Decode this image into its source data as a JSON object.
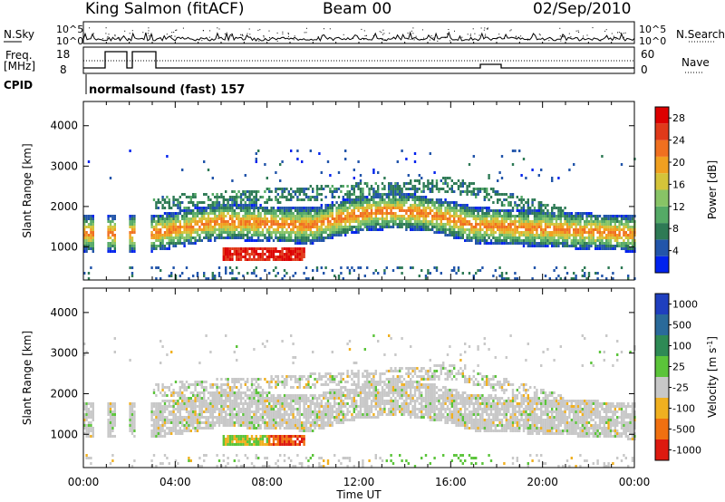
{
  "header": {
    "title": "King Salmon (fitACF)",
    "beam": "Beam 00",
    "date": "02/Sep/2010"
  },
  "info_panel": {
    "nsky_label": "N.Sky",
    "nsky_ticks": [
      "10^5",
      "10^0"
    ],
    "nsearch_label": "N.Search",
    "nsearch_ticks": [
      "10^5",
      "10^0"
    ],
    "freq_label": "Freq.",
    "freq_unit": "[MHz]",
    "freq_ticks": [
      "18",
      "8"
    ],
    "nave_label": "Nave",
    "nave_ticks": [
      "60",
      "0"
    ],
    "cpid_label": "CPID",
    "cpid_value": "normalsound (fast) 157"
  },
  "chart_data": [
    {
      "type": "heatmap",
      "panel": "power",
      "ylabel": "Slant Range [km]",
      "yticks": [
        "1000",
        "2000",
        "3000",
        "4000"
      ],
      "ylim": [
        180,
        4600
      ],
      "xlabel": "Time UT",
      "xticks": [
        "00:00",
        "04:00",
        "08:00",
        "12:00",
        "16:00",
        "20:00",
        "00:00"
      ],
      "xlim_hours": [
        0,
        24
      ],
      "colorbar": {
        "label": "Power [dB]",
        "ticks": [
          "4",
          "8",
          "12",
          "16",
          "20",
          "24",
          "28"
        ],
        "range": [
          0,
          30
        ],
        "colors": [
          "#0022ee",
          "#2255aa",
          "#2e7a55",
          "#55aa66",
          "#88c466",
          "#d4c43a",
          "#f0a020",
          "#f07020",
          "#e03a1a",
          "#dd0000"
        ]
      },
      "features": [
        {
          "name": "main band",
          "t_start": 0.0,
          "t_end": 24.0,
          "range_km_start": 1250,
          "range_km_end": 1350,
          "peak_power_db": 22
        },
        {
          "name": "lower echo",
          "t_start": 6.0,
          "t_end": 9.5,
          "range_km": 800,
          "peak_power_db": 28
        },
        {
          "name": "upper band",
          "t_start": 3.0,
          "t_end": 17.0,
          "range_km_start": 2300,
          "range_km_end": 2600,
          "peak_power_db": 10
        }
      ]
    },
    {
      "type": "heatmap",
      "panel": "velocity",
      "ylabel": "Slant Range [km]",
      "yticks": [
        "1000",
        "2000",
        "3000",
        "4000"
      ],
      "ylim": [
        180,
        4600
      ],
      "xlabel": "Time UT",
      "xticks": [
        "00:00",
        "04:00",
        "08:00",
        "12:00",
        "16:00",
        "20:00",
        "00:00"
      ],
      "xlim_hours": [
        0,
        24
      ],
      "colorbar": {
        "label": "Velocity [m s",
        "label_sup": "-1",
        "label_end": "]",
        "ticks": [
          "1000",
          "500",
          "100",
          "25",
          "-25",
          "-100",
          "-500",
          "-1000"
        ],
        "colors": [
          "#1f3fbf",
          "#2a6a9a",
          "#2e8a55",
          "#5bc43a",
          "#c8c8c8",
          "#f0b020",
          "#f07010",
          "#dd1a10"
        ]
      },
      "features": [
        {
          "name": "ground scatter",
          "t_start": 0.0,
          "t_end": 24.0,
          "velocity_ms": 0
        },
        {
          "name": "lower echo",
          "t_start": 6.0,
          "t_end": 9.5,
          "range_km": 800,
          "velocity_ms": -200
        },
        {
          "name": "near-range",
          "t_start": 14.0,
          "t_end": 18.0,
          "range_km": 300,
          "velocity_ms": 100
        }
      ]
    }
  ],
  "colors": {
    "axis": "#000000",
    "background": "#ffffff"
  }
}
